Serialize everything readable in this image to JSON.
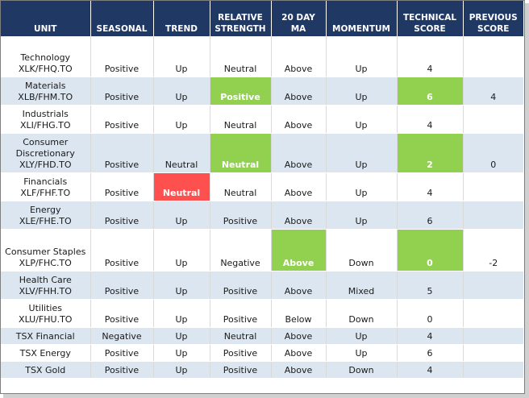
{
  "headers": {
    "unit": "UNIT",
    "seasonal": "SEASONAL",
    "trend": "TREND",
    "relative_strength_1": "RELATIVE",
    "relative_strength_2": "STRENGTH",
    "ma_1": "20 DAY",
    "ma_2": "MA",
    "momentum": "MOMENTUM",
    "technical_1": "TECHNICAL",
    "technical_2": "SCORE",
    "previous_1": "PREVIOUS",
    "previous_2": "SCORE"
  },
  "rows": [
    {
      "unit1": "Technology",
      "unit2": "XLK/FHQ.TO",
      "seasonal": "Positive",
      "trend": "Up",
      "relative_strength": "Neutral",
      "ma": "Above",
      "momentum": "Up",
      "technical_score": "4",
      "previous_score": ""
    },
    {
      "unit1": "Materials",
      "unit2": "XLB/FHM.TO",
      "seasonal": "Positive",
      "trend": "Up",
      "relative_strength": "Positive",
      "ma": "Above",
      "momentum": "Up",
      "technical_score": "6",
      "previous_score": "4"
    },
    {
      "unit1": "Industrials",
      "unit2": "XLI/FHG.TO",
      "seasonal": "Positive",
      "trend": "Up",
      "relative_strength": "Neutral",
      "ma": "Above",
      "momentum": "Up",
      "technical_score": "4",
      "previous_score": ""
    },
    {
      "unit1": "Consumer Discretionary",
      "unit2": "XLY/FHD.TO",
      "seasonal": "Positive",
      "trend": "Neutral",
      "relative_strength": "Neutral",
      "ma": "Above",
      "momentum": "Up",
      "technical_score": "2",
      "previous_score": "0"
    },
    {
      "unit1": "Financials",
      "unit2": "XLF/FHF.TO",
      "seasonal": "Positive",
      "trend": "Neutral",
      "relative_strength": "Neutral",
      "ma": "Above",
      "momentum": "Up",
      "technical_score": "4",
      "previous_score": ""
    },
    {
      "unit1": "Energy",
      "unit2": "XLE/FHE.TO",
      "seasonal": "Positive",
      "trend": "Up",
      "relative_strength": "Positive",
      "ma": "Above",
      "momentum": "Up",
      "technical_score": "6",
      "previous_score": ""
    },
    {
      "unit1": "Consumer Staples",
      "unit2": "XLP/FHC.TO",
      "seasonal": "Positive",
      "trend": "Up",
      "relative_strength": "Negative",
      "ma": "Above",
      "momentum": "Down",
      "technical_score": "0",
      "previous_score": "-2"
    },
    {
      "unit1": "Health Care",
      "unit2": "XLV/FHH.TO",
      "seasonal": "Positive",
      "trend": "Up",
      "relative_strength": "Positive",
      "ma": "Above",
      "momentum": "Mixed",
      "technical_score": "5",
      "previous_score": ""
    },
    {
      "unit1": "Utilities",
      "unit2": "XLU/FHU.TO",
      "seasonal": "Positive",
      "trend": "Up",
      "relative_strength": "Positive",
      "ma": "Below",
      "momentum": "Down",
      "technical_score": "0",
      "previous_score": ""
    },
    {
      "unit1": "TSX Financial",
      "unit2": "",
      "seasonal": "Negative",
      "trend": "Up",
      "relative_strength": "Neutral",
      "ma": "Above",
      "momentum": "Up",
      "technical_score": "4",
      "previous_score": ""
    },
    {
      "unit1": "TSX Energy",
      "unit2": "",
      "seasonal": "Positive",
      "trend": "Up",
      "relative_strength": "Positive",
      "ma": "Above",
      "momentum": "Up",
      "technical_score": "6",
      "previous_score": ""
    },
    {
      "unit1": "TSX Gold",
      "unit2": "",
      "seasonal": "Positive",
      "trend": "Up",
      "relative_strength": "Positive",
      "ma": "Above",
      "momentum": "Down",
      "technical_score": "4",
      "previous_score": ""
    }
  ],
  "colors": {
    "header_bg": "#1f3864",
    "band": "#dce6f1",
    "highlight_green": "#92d050",
    "highlight_red": "#ff5050"
  }
}
